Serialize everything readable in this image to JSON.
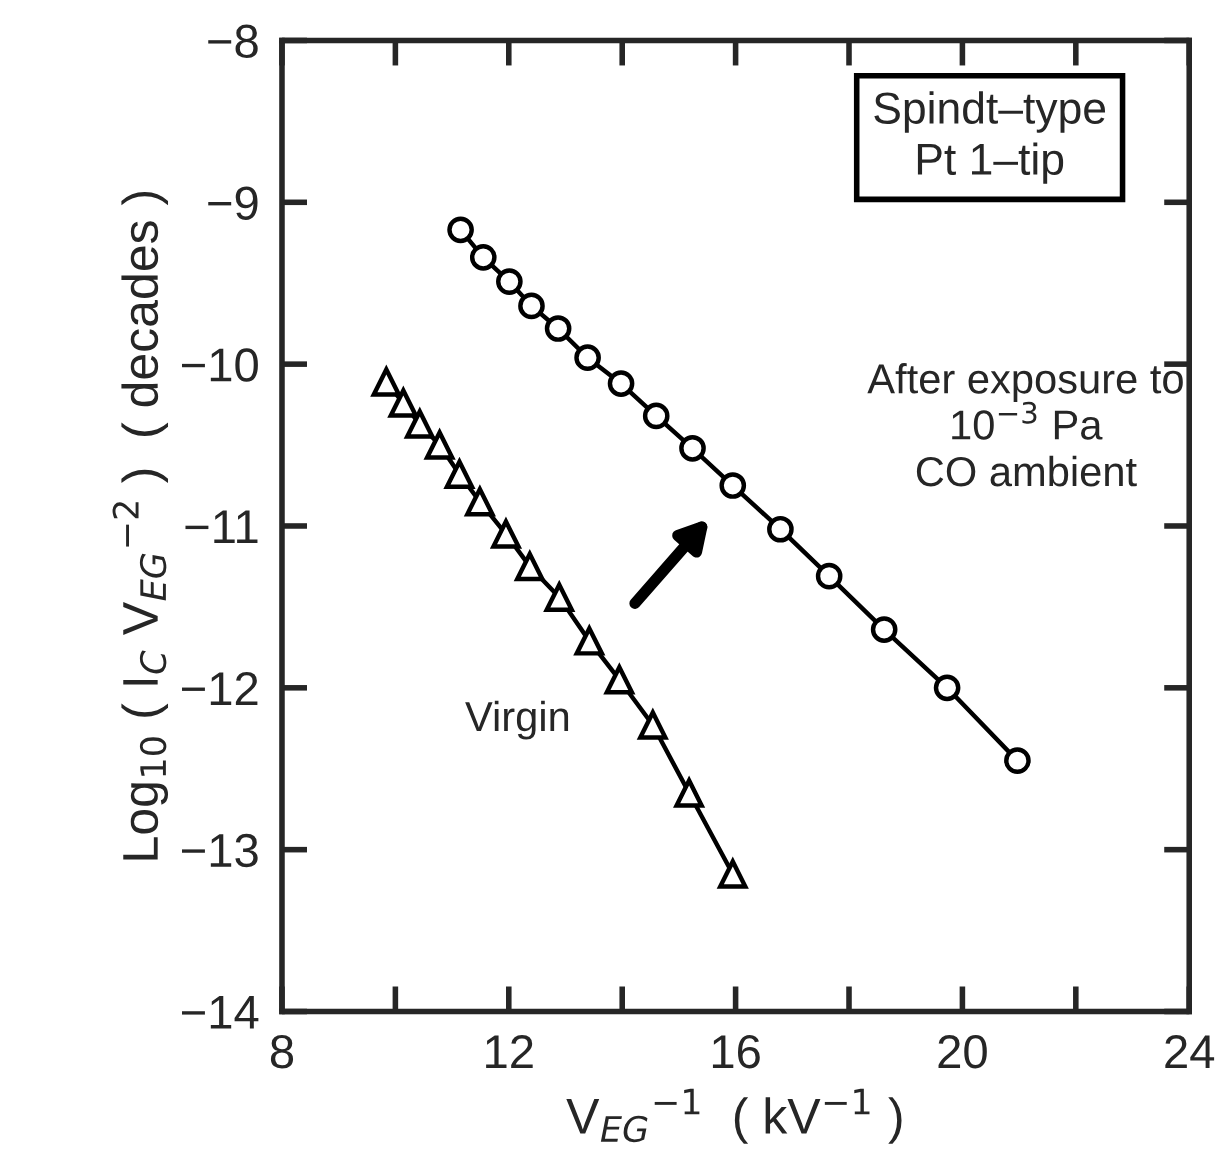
{
  "chart_data": {
    "type": "line",
    "xlabel": "V$_{EG}$$^{−1}$  ( kV$^{−1}$ )",
    "ylabel": "Log$_{10}$ ( I$_{C}$ V$_{EG}$$^{−2}$ )  ( decades )",
    "annotations": [
      "Spindt–type\nPt 1–tip"
    ],
    "series": [
      {
        "name": "After exposure to\n10$^{−3}$ Pa\nCO ambient",
        "color": "#000000",
        "marker": "circle",
        "x": [
          11.15,
          11.55,
          12.01,
          12.4,
          12.87,
          13.39,
          13.98,
          14.6,
          15.24,
          15.95,
          16.79,
          17.65,
          18.62,
          19.73,
          20.97
        ],
        "values": [
          -9.17,
          -9.34,
          -9.49,
          -9.64,
          -9.78,
          -9.96,
          -10.12,
          -10.32,
          -10.52,
          -10.75,
          -11.02,
          -11.31,
          -11.64,
          -12.0,
          -12.45
        ]
      },
      {
        "name": "Virgin",
        "color": "#000000",
        "marker": "triangle",
        "x": [
          9.84,
          10.14,
          10.43,
          10.78,
          11.13,
          11.49,
          11.95,
          12.37,
          12.89,
          13.42,
          13.95,
          14.54,
          15.18,
          15.95
        ],
        "values": [
          -10.11,
          -10.24,
          -10.37,
          -10.5,
          -10.68,
          -10.85,
          -11.05,
          -11.25,
          -11.44,
          -11.71,
          -11.95,
          -12.23,
          -12.65,
          -13.15
        ]
      }
    ],
    "xlim": [
      8,
      24
    ],
    "xticks": [
      8,
      {
        "value": 10,
        "label": null
      },
      12,
      {
        "value": 14,
        "label": null
      },
      16,
      {
        "value": 18,
        "label": null
      },
      20,
      {
        "value": 22,
        "label": null
      },
      24
    ],
    "ylim": [
      -14,
      -8
    ],
    "yticks": [
      -14,
      -13,
      -12,
      -11,
      -10,
      -9,
      -8
    ],
    "grid": false,
    "legend": false,
    "line_style": "solid"
  }
}
